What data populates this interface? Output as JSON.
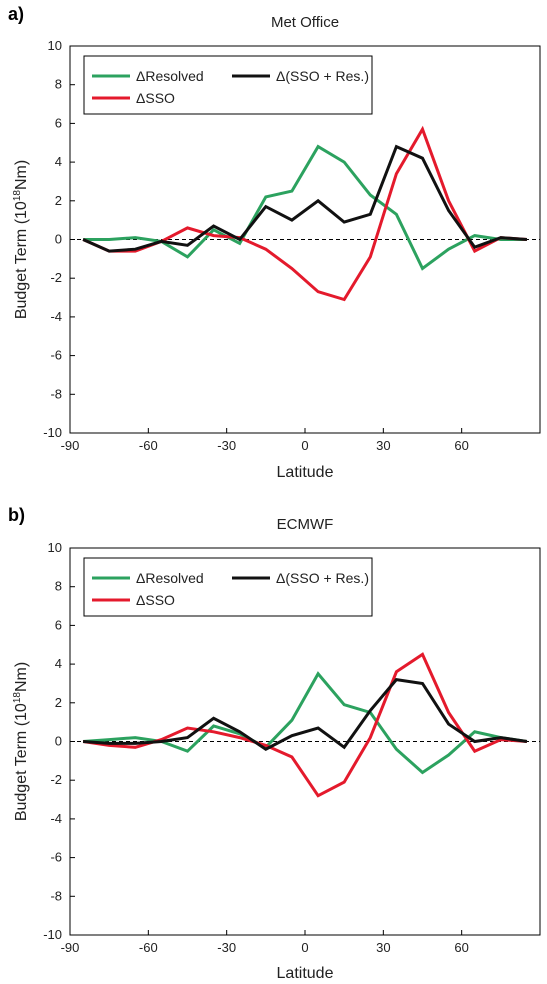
{
  "chart_data": [
    {
      "type": "line",
      "panel_label": "a)",
      "title": "Met Office",
      "xlabel": "Latitude",
      "ylabel_prefix": "Budget Term (10",
      "ylabel_sup": "18",
      "ylabel_suffix": "Nm)",
      "xlim": [
        -90,
        90
      ],
      "ylim": [
        -10,
        10
      ],
      "xticks": [
        -90,
        -60,
        -30,
        0,
        30,
        60
      ],
      "yticks": [
        -10,
        -8,
        -6,
        -4,
        -2,
        0,
        2,
        4,
        6,
        8,
        10
      ],
      "zero_line": "dashed",
      "legend_position": "top-left",
      "x": [
        -85,
        -75,
        -65,
        -55,
        -45,
        -35,
        -25,
        -15,
        -5,
        5,
        15,
        25,
        35,
        45,
        55,
        65,
        75,
        85
      ],
      "series": [
        {
          "name": "ΔResolved",
          "color": "#2ca25f",
          "values": [
            0,
            0.0,
            0.1,
            -0.1,
            -0.9,
            0.5,
            -0.2,
            2.2,
            2.5,
            4.8,
            4.0,
            2.3,
            1.3,
            -1.5,
            -0.5,
            0.2,
            0.0,
            0.0
          ]
        },
        {
          "name": "ΔSSO",
          "color": "#e41a2c",
          "values": [
            0,
            -0.6,
            -0.6,
            -0.1,
            0.6,
            0.2,
            0.1,
            -0.5,
            -1.5,
            -2.7,
            -3.1,
            -0.9,
            3.4,
            5.7,
            2.0,
            -0.6,
            0.1,
            0.0
          ]
        },
        {
          "name": "Δ(SSO + Res.)",
          "color": "#111111",
          "values": [
            0,
            -0.6,
            -0.5,
            -0.1,
            -0.3,
            0.7,
            0.0,
            1.7,
            1.0,
            2.0,
            0.9,
            1.3,
            4.8,
            4.2,
            1.5,
            -0.4,
            0.1,
            0.0
          ]
        }
      ]
    },
    {
      "type": "line",
      "panel_label": "b)",
      "title": "ECMWF",
      "xlabel": "Latitude",
      "ylabel_prefix": "Budget Term (10",
      "ylabel_sup": "18",
      "ylabel_suffix": "Nm)",
      "xlim": [
        -90,
        90
      ],
      "ylim": [
        -10,
        10
      ],
      "xticks": [
        -90,
        -60,
        -30,
        0,
        30,
        60
      ],
      "yticks": [
        -10,
        -8,
        -6,
        -4,
        -2,
        0,
        2,
        4,
        6,
        8,
        10
      ],
      "zero_line": "dashed",
      "legend_position": "top-left",
      "x": [
        -85,
        -75,
        -65,
        -55,
        -45,
        -35,
        -25,
        -15,
        -5,
        5,
        15,
        25,
        35,
        45,
        55,
        65,
        75,
        85
      ],
      "series": [
        {
          "name": "ΔResolved",
          "color": "#2ca25f",
          "values": [
            0,
            0.1,
            0.2,
            0.0,
            -0.5,
            0.8,
            0.4,
            -0.3,
            1.1,
            3.5,
            1.9,
            1.5,
            -0.4,
            -1.6,
            -0.7,
            0.5,
            0.2,
            0.0
          ]
        },
        {
          "name": "ΔSSO",
          "color": "#e41a2c",
          "values": [
            0,
            -0.2,
            -0.3,
            0.1,
            0.7,
            0.5,
            0.2,
            -0.2,
            -0.8,
            -2.8,
            -2.1,
            0.2,
            3.6,
            4.5,
            1.5,
            -0.5,
            0.1,
            0.0
          ]
        },
        {
          "name": "Δ(SSO + Res.)",
          "color": "#111111",
          "values": [
            0,
            -0.1,
            -0.1,
            0.0,
            0.2,
            1.2,
            0.5,
            -0.4,
            0.3,
            0.7,
            -0.3,
            1.6,
            3.2,
            3.0,
            0.9,
            0.0,
            0.2,
            0.0
          ]
        }
      ]
    }
  ]
}
